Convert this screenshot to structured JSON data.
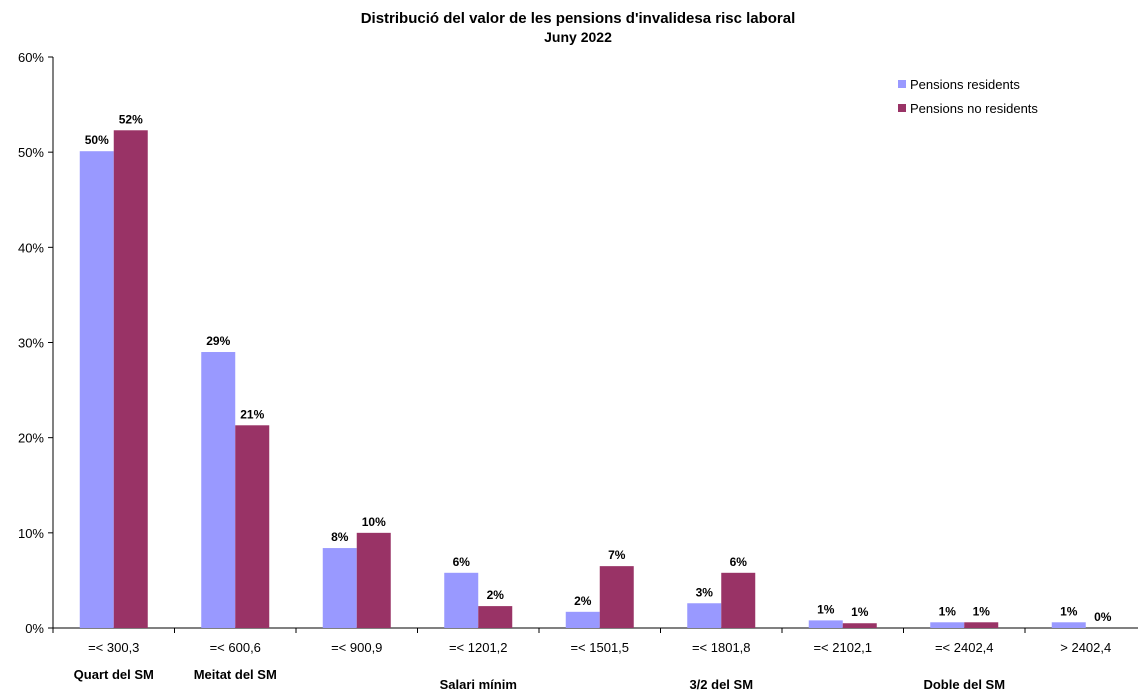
{
  "chart_data": {
    "type": "bar",
    "title": "Distribució del valor de les pensions d'invalidesa risc laboral",
    "subtitle": "Juny 2022",
    "categories": [
      "=< 300,3",
      "=< 600,6",
      "=< 900,9",
      "=< 1201,2",
      "=< 1501,5",
      "=< 1801,8",
      "=< 2102,1",
      "=< 2402,4",
      "> 2402,4"
    ],
    "category_sublabels": [
      "Quart del SM",
      "Meitat del SM",
      "",
      "Salari mínim",
      "",
      "3/2 del SM",
      "",
      "Doble del SM",
      ""
    ],
    "series": [
      {
        "name": "Pensions residents",
        "color": "#9999ff",
        "values": [
          0.501,
          0.29,
          0.084,
          0.058,
          0.017,
          0.026,
          0.008,
          0.006,
          0.006
        ],
        "labels": [
          "50%",
          "29%",
          "8%",
          "6%",
          "2%",
          "3%",
          "1%",
          "1%",
          "1%"
        ]
      },
      {
        "name": "Pensions no residents",
        "color": "#993366",
        "values": [
          0.523,
          0.213,
          0.1,
          0.023,
          0.065,
          0.058,
          0.005,
          0.006,
          0.0
        ],
        "labels": [
          "52%",
          "21%",
          "10%",
          "2%",
          "7%",
          "6%",
          "1%",
          "1%",
          "0%"
        ]
      }
    ],
    "y_ticks": [
      "0%",
      "10%",
      "20%",
      "30%",
      "40%",
      "50%",
      "60%"
    ],
    "ylim": [
      0,
      0.6
    ],
    "grid": false,
    "legend_position": "top-right"
  }
}
